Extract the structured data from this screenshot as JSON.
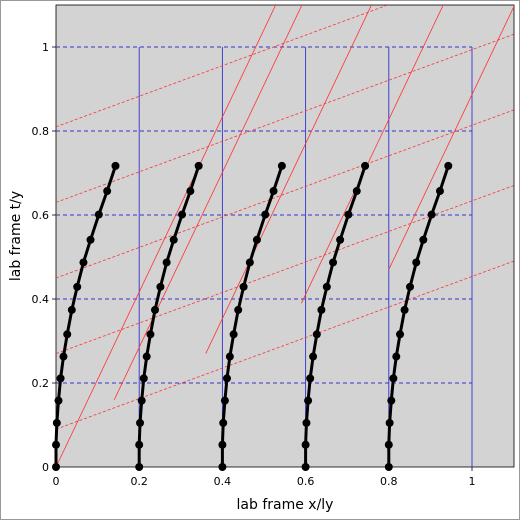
{
  "chart_data": {
    "type": "line",
    "title": "",
    "xlabel": "lab frame x/ly",
    "ylabel": "lab frame t/y",
    "xlim": [
      0,
      1.1
    ],
    "ylim": [
      0,
      1.1
    ],
    "xticks": [
      "0",
      "0.2",
      "0.4",
      "0.6",
      "0.8",
      "1"
    ],
    "yticks": [
      "0",
      "0.2",
      "0.4",
      "0.6",
      "0.8",
      "1"
    ],
    "background": "#d3d3d3",
    "lab_grid": {
      "color": "#3333cc",
      "x_values": [
        0.2,
        0.4,
        0.6,
        0.8,
        1.0
      ],
      "t_values": [
        0.2,
        0.4,
        0.6,
        0.8,
        1.0
      ],
      "x_max": 1.0,
      "t_max": 1.0
    },
    "moving_grid": {
      "color": "#ff3333",
      "worldlines": [
        [
          [
            0.0,
            0.0
          ],
          [
            0.72,
            1.5
          ]
        ],
        [
          [
            0.14,
            0.16
          ],
          [
            0.86,
            1.66
          ]
        ],
        [
          [
            0.36,
            0.27
          ],
          [
            1.08,
            1.77
          ]
        ],
        [
          [
            0.59,
            0.39
          ],
          [
            1.31,
            1.89
          ]
        ],
        [
          [
            0.8,
            0.47
          ],
          [
            1.52,
            1.97
          ]
        ]
      ],
      "simultaneity_lines": [
        [
          [
            0.0,
            0.09
          ],
          [
            1.1,
            0.49
          ]
        ],
        [
          [
            0.0,
            0.27
          ],
          [
            1.1,
            0.67
          ]
        ],
        [
          [
            0.0,
            0.45
          ],
          [
            1.1,
            0.85
          ]
        ],
        [
          [
            0.0,
            0.63
          ],
          [
            1.1,
            1.03
          ]
        ],
        [
          [
            0.0,
            0.81
          ],
          [
            1.1,
            1.21
          ]
        ]
      ]
    },
    "series_style": {
      "color": "#000000"
    },
    "x_offsets": [
      0.0,
      0.2,
      0.4,
      0.6,
      0.8
    ],
    "series_shape": [
      [
        0.0,
        0.0
      ],
      [
        0.0,
        0.053
      ],
      [
        0.002,
        0.105
      ],
      [
        0.006,
        0.158
      ],
      [
        0.011,
        0.211
      ],
      [
        0.018,
        0.263
      ],
      [
        0.027,
        0.316
      ],
      [
        0.038,
        0.374
      ],
      [
        0.051,
        0.429
      ],
      [
        0.066,
        0.487
      ],
      [
        0.083,
        0.541
      ],
      [
        0.103,
        0.601
      ],
      [
        0.123,
        0.657
      ],
      [
        0.143,
        0.717
      ]
    ]
  }
}
